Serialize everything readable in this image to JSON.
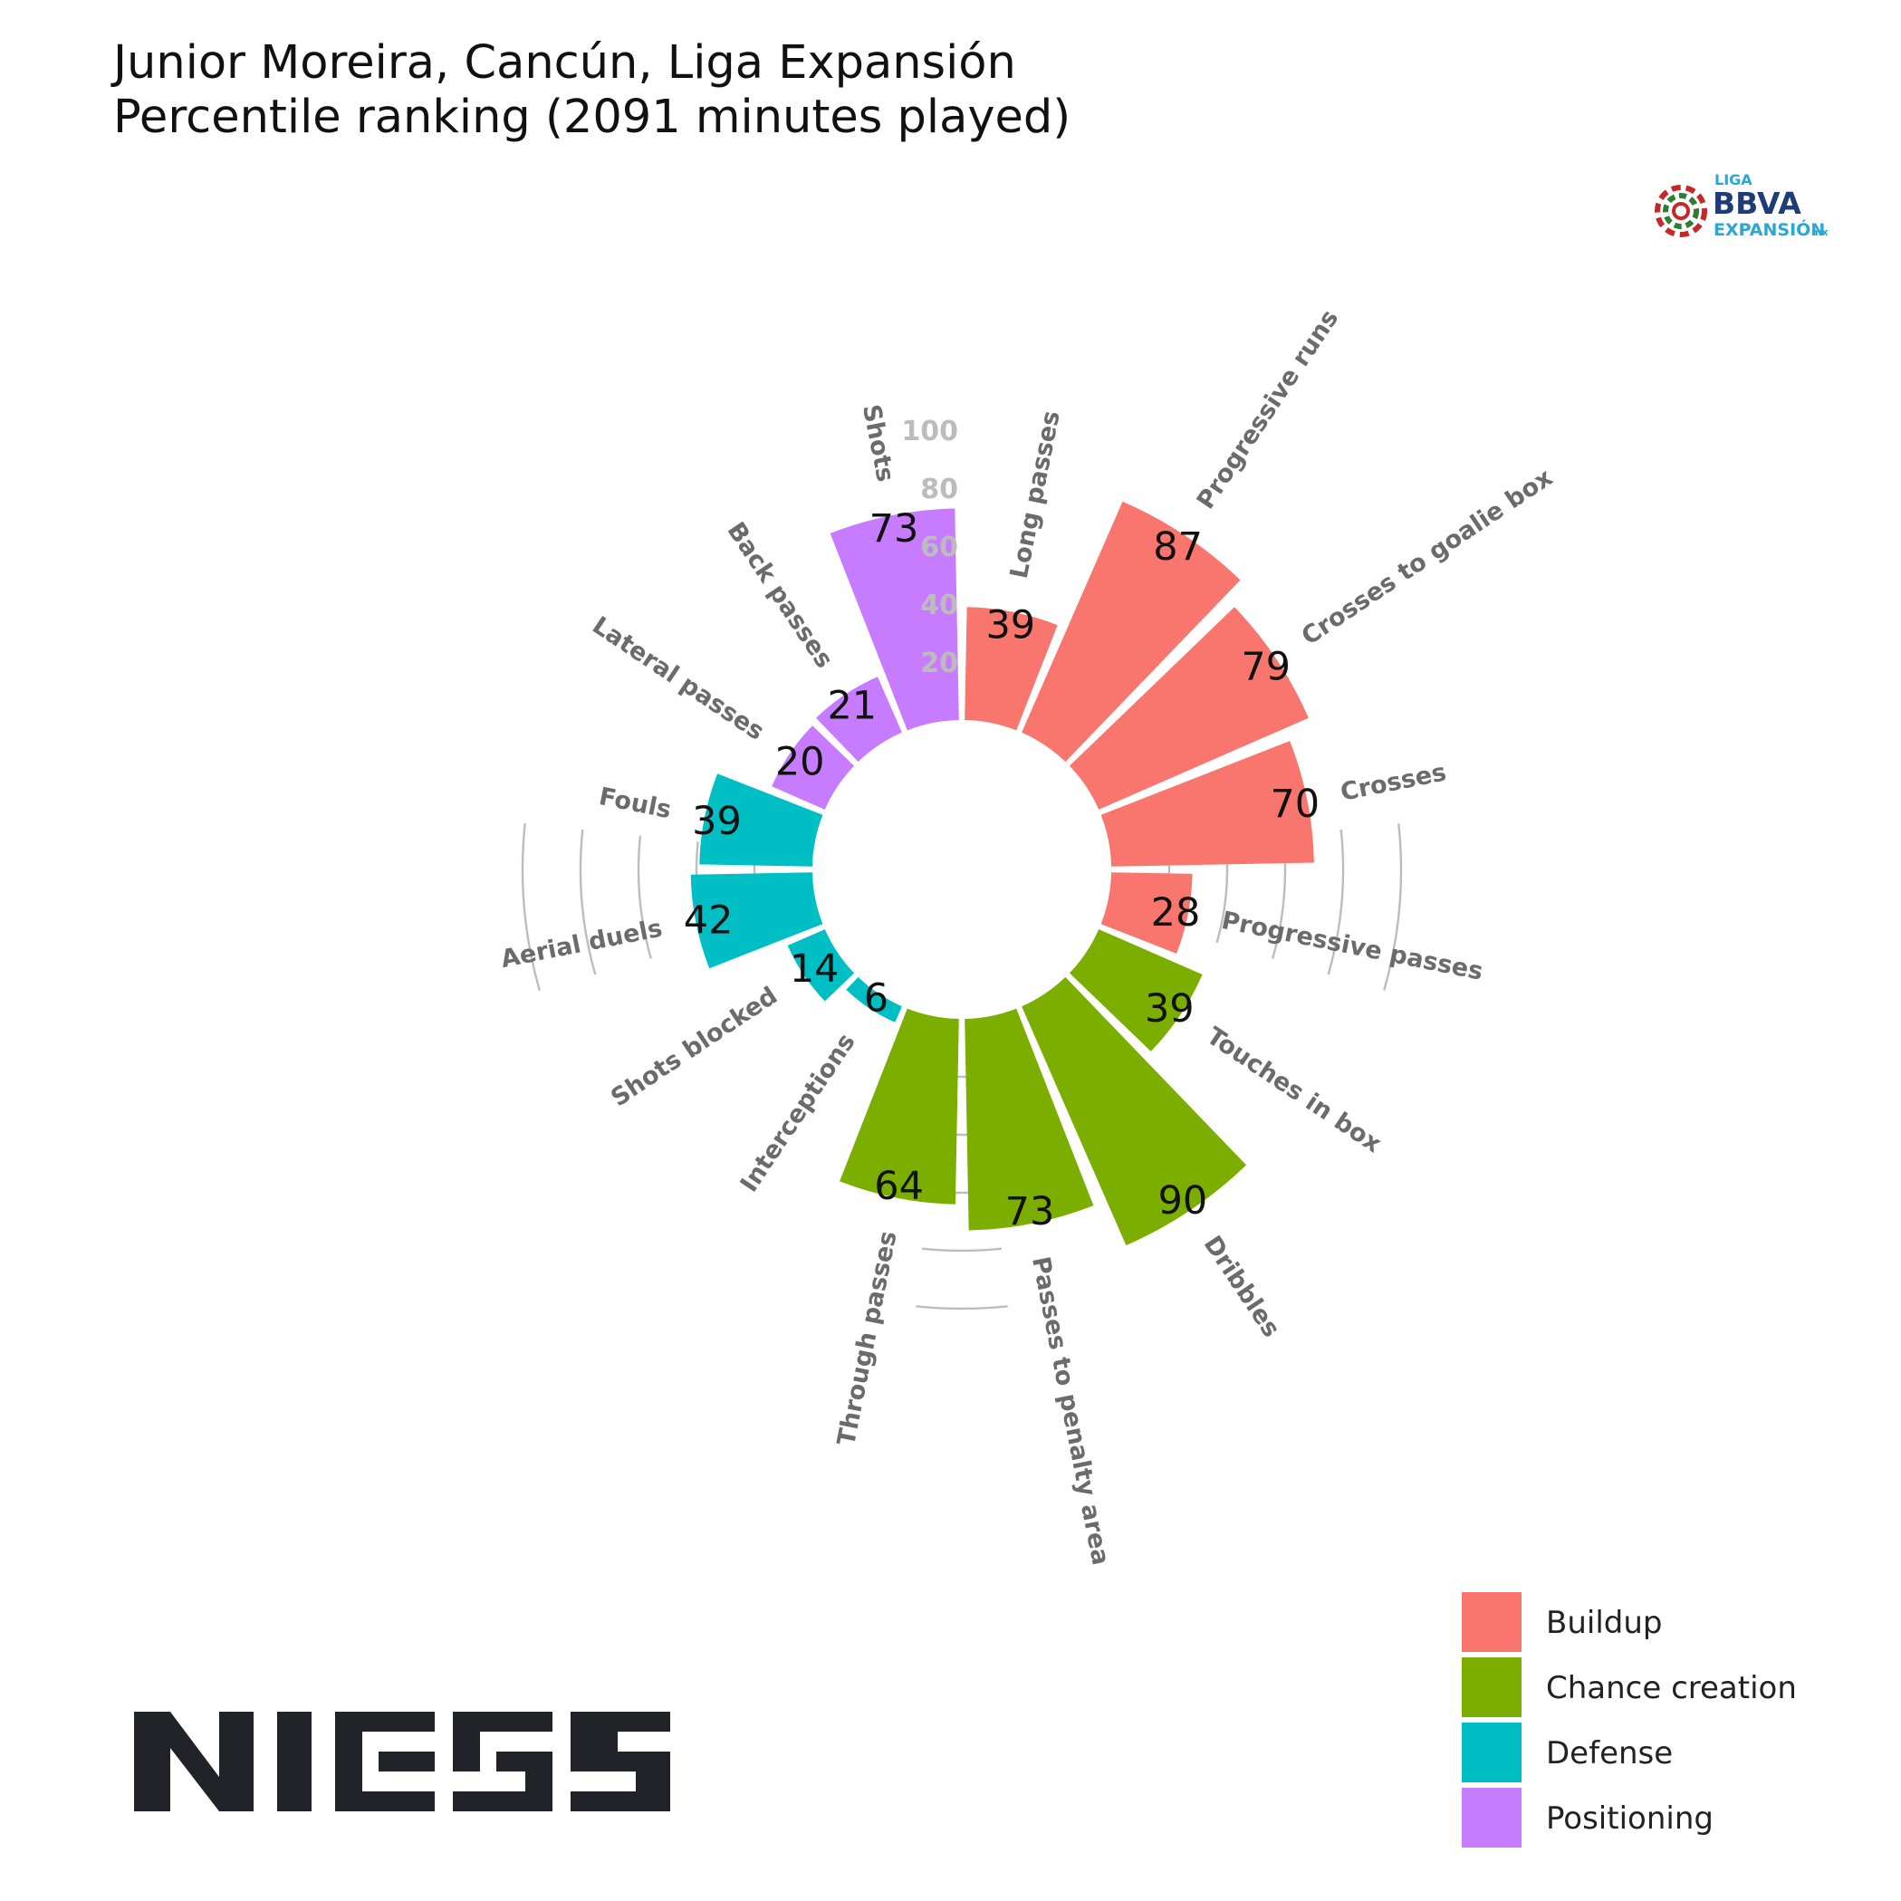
{
  "title_line1": "Junior Moreira, Cancún, Liga Expansión",
  "title_line2": "Percentile ranking (2091 minutes played)",
  "league_logo": {
    "line1": "LIGA",
    "line2": "BBVA",
    "line3": "EXPANSIÓN",
    "suffix": "mx"
  },
  "brand_logo": "NIES",
  "colors": {
    "Buildup": "#F8766D",
    "Chance creation": "#7CAE00",
    "Defense": "#00BFC4",
    "Positioning": "#C77CFF"
  },
  "chart_data": {
    "type": "polar-bar",
    "title": "Junior Moreira, Cancún, Liga Expansión",
    "subtitle": "Percentile ranking (2091 minutes played)",
    "ylim": [
      0,
      100
    ],
    "radial_ticks": [
      "20",
      "40",
      "60",
      "80",
      "100"
    ],
    "legend": [
      "Buildup",
      "Chance creation",
      "Defense",
      "Positioning"
    ],
    "legend_position": "bottom-right",
    "categories": [
      "Long passes",
      "Progressive runs",
      "Crosses to goalie box",
      "Crosses",
      "Progressive passes",
      "Touches in box",
      "Dribbles",
      "Passes to penalty area",
      "Through passes",
      "Interceptions",
      "Shots blocked",
      "Aerial duels",
      "Fouls",
      "Lateral passes",
      "Back passes",
      "Shots"
    ],
    "values": [
      39,
      87,
      79,
      70,
      28,
      39,
      90,
      73,
      64,
      6,
      14,
      42,
      39,
      20,
      21,
      73
    ],
    "groups": [
      "Buildup",
      "Buildup",
      "Buildup",
      "Buildup",
      "Buildup",
      "Chance creation",
      "Chance creation",
      "Chance creation",
      "Chance creation",
      "Defense",
      "Defense",
      "Defense",
      "Defense",
      "Positioning",
      "Positioning",
      "Positioning"
    ]
  }
}
